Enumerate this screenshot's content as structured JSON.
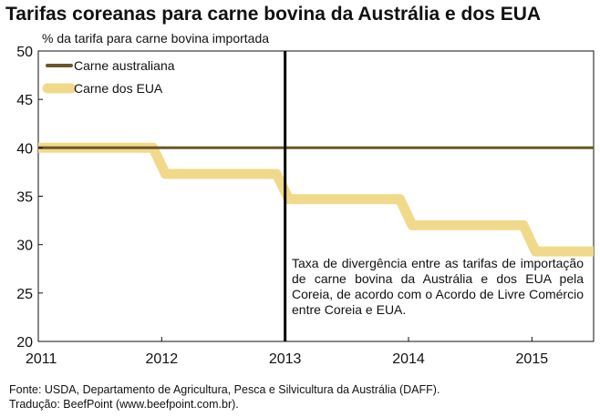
{
  "title": "Tarifas coreanas para carne bovina da Austrália e dos EUA",
  "chart_data": {
    "type": "line",
    "title": "Tarifas coreanas para carne bovina da Austrália e dos EUA",
    "ylabel": "% da tarifa para carne bovina importada",
    "xlabel": "",
    "ylim": [
      20,
      50
    ],
    "xlim": [
      2011,
      2015.5
    ],
    "yticks": [
      "20",
      "25",
      "30",
      "35",
      "40",
      "45",
      "50"
    ],
    "xticks": [
      "2011",
      "2012",
      "2013",
      "2014",
      "2015"
    ],
    "series": [
      {
        "name": "Carne australiana",
        "color": "#6b5726",
        "points": [
          [
            2011,
            40
          ],
          [
            2015.5,
            40
          ]
        ]
      },
      {
        "name": "Carne dos EUA",
        "color": "#f1d98b",
        "points": [
          [
            2011,
            40
          ],
          [
            2011.93,
            40
          ],
          [
            2012.03,
            37.3
          ],
          [
            2012.93,
            37.3
          ],
          [
            2013.03,
            34.7
          ],
          [
            2013.93,
            34.7
          ],
          [
            2014.03,
            32
          ],
          [
            2014.93,
            32
          ],
          [
            2015.03,
            29.3
          ],
          [
            2015.5,
            29.3
          ]
        ]
      }
    ],
    "vline": 2013,
    "legend_position": "top-left",
    "grid": false,
    "annotation": "Taxa de divergência entre as tarifas de importação de carne bovina da Austrália e dos EUA pela Coreia, de acordo com o Acordo de Livre Comércio entre Coreia e EUA."
  },
  "source_line": "Fonte: USDA, Departamento de Agricultura, Pesca e Silvicultura da Austrália (DAFF).",
  "translation_line": "Tradução: BeefPoint (www.beefpoint.com.br)."
}
